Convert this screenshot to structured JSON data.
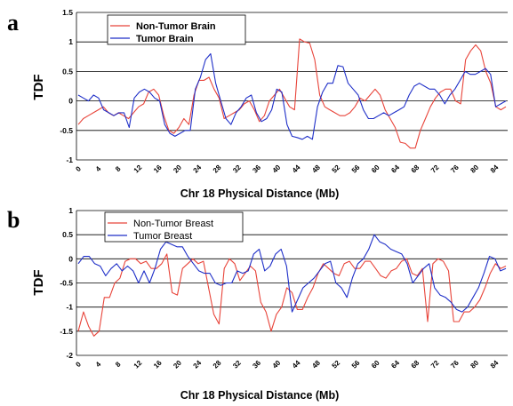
{
  "chart_data": [
    {
      "panel": "a",
      "type": "line",
      "ylabel": "TDF",
      "xlabel": "Chr 18 Physical Distance (Mb)",
      "ylim": [
        -1,
        1.5
      ],
      "yticks": [
        "1.5",
        "1",
        "0.5",
        "0",
        "-0.5",
        "-1"
      ],
      "xticks": [
        "0",
        "4",
        "8",
        "12",
        "16",
        "20",
        "24",
        "28",
        "32",
        "36",
        "40",
        "44",
        "48",
        "52",
        "56",
        "60",
        "64",
        "68",
        "72",
        "76",
        "80",
        "84"
      ],
      "grid": "horizontal",
      "legend_position": "top-left",
      "series": [
        {
          "name": "Non-Tumor Brain",
          "color": "#e8443a",
          "values": [
            -0.4,
            -0.3,
            -0.25,
            -0.2,
            -0.15,
            -0.1,
            -0.2,
            -0.25,
            -0.2,
            -0.25,
            -0.3,
            -0.2,
            -0.1,
            -0.05,
            0.15,
            0.2,
            0.1,
            -0.25,
            -0.5,
            -0.55,
            -0.45,
            -0.3,
            -0.4,
            0.1,
            0.35,
            0.35,
            0.4,
            0.2,
            0.05,
            -0.3,
            -0.25,
            -0.2,
            -0.15,
            -0.05,
            0.0,
            -0.15,
            -0.35,
            -0.25,
            0.0,
            0.1,
            0.2,
            0.05,
            -0.1,
            -0.15,
            1.05,
            1.0,
            0.98,
            0.7,
            0.1,
            -0.1,
            -0.15,
            -0.2,
            -0.25,
            -0.25,
            -0.2,
            -0.1,
            0.05,
            0.0,
            0.1,
            0.2,
            0.1,
            -0.15,
            -0.3,
            -0.45,
            -0.7,
            -0.72,
            -0.8,
            -0.8,
            -0.5,
            -0.3,
            -0.1,
            0.05,
            0.15,
            0.2,
            0.2,
            0.0,
            -0.05,
            0.7,
            0.85,
            0.95,
            0.85,
            0.5,
            0.3,
            -0.1,
            -0.15,
            -0.1
          ]
        },
        {
          "name": "Tumor Brain",
          "color": "#1f2fc8",
          "values": [
            0.1,
            0.05,
            0.0,
            0.1,
            0.05,
            -0.15,
            -0.2,
            -0.25,
            -0.2,
            -0.2,
            -0.45,
            0.05,
            0.15,
            0.2,
            0.15,
            0.05,
            0.0,
            -0.4,
            -0.55,
            -0.6,
            -0.55,
            -0.5,
            -0.5,
            0.2,
            0.4,
            0.7,
            0.8,
            0.3,
            0.0,
            -0.3,
            -0.4,
            -0.2,
            -0.1,
            0.05,
            0.1,
            -0.2,
            -0.35,
            -0.3,
            -0.15,
            0.2,
            0.15,
            -0.4,
            -0.6,
            -0.62,
            -0.65,
            -0.6,
            -0.65,
            -0.1,
            0.15,
            0.3,
            0.3,
            0.6,
            0.58,
            0.3,
            0.2,
            0.1,
            -0.15,
            -0.3,
            -0.3,
            -0.25,
            -0.2,
            -0.25,
            -0.2,
            -0.15,
            -0.1,
            0.1,
            0.25,
            0.3,
            0.25,
            0.2,
            0.2,
            0.1,
            -0.05,
            0.1,
            0.2,
            0.35,
            0.5,
            0.45,
            0.45,
            0.5,
            0.55,
            0.45,
            -0.1,
            -0.05,
            0.0
          ]
        }
      ]
    },
    {
      "panel": "b",
      "type": "line",
      "ylabel": "TDF",
      "xlabel": "Chr 18 Physical Distance (Mb)",
      "ylim": [
        -2,
        1
      ],
      "yticks": [
        "1",
        "0.5",
        "0",
        "-0.5",
        "-1",
        "-1.5",
        "-2"
      ],
      "xticks": [
        "0",
        "4",
        "8",
        "12",
        "16",
        "20",
        "24",
        "28",
        "32",
        "36",
        "40",
        "44",
        "48",
        "52",
        "56",
        "60",
        "64",
        "68",
        "72",
        "76",
        "80",
        "84"
      ],
      "grid": "horizontal",
      "legend_position": "top-left",
      "series": [
        {
          "name": "Non-Tumor Breast",
          "color": "#e8443a",
          "values": [
            -1.5,
            -1.1,
            -1.4,
            -1.6,
            -1.5,
            -0.8,
            -0.8,
            -0.5,
            -0.4,
            -0.05,
            0.0,
            0.0,
            -0.1,
            -0.05,
            -0.2,
            -0.2,
            -0.1,
            0.1,
            -0.7,
            -0.75,
            -0.2,
            -0.1,
            0.0,
            -0.1,
            -0.05,
            -0.6,
            -1.15,
            -1.35,
            -0.2,
            0.0,
            -0.1,
            -0.45,
            -0.3,
            -0.15,
            -0.25,
            -0.9,
            -1.1,
            -1.5,
            -1.15,
            -1.0,
            -0.6,
            -0.7,
            -1.05,
            -1.05,
            -0.8,
            -0.6,
            -0.3,
            -0.1,
            -0.2,
            -0.3,
            -0.35,
            -0.1,
            -0.05,
            -0.2,
            -0.2,
            -0.05,
            -0.05,
            -0.2,
            -0.35,
            -0.4,
            -0.25,
            -0.2,
            -0.05,
            0.0,
            -0.3,
            -0.35,
            -0.2,
            -1.3,
            -0.1,
            0.0,
            -0.05,
            -0.25,
            -1.3,
            -1.3,
            -1.1,
            -1.1,
            -1.0,
            -0.85,
            -0.6,
            -0.3,
            -0.1,
            -0.2,
            -0.15
          ]
        },
        {
          "name": "Tumor Breast",
          "color": "#1f2fc8",
          "values": [
            -0.1,
            0.05,
            0.05,
            -0.1,
            -0.15,
            -0.35,
            -0.2,
            -0.1,
            -0.25,
            -0.15,
            -0.25,
            -0.5,
            -0.25,
            -0.5,
            -0.2,
            0.2,
            0.35,
            0.3,
            0.25,
            0.25,
            0.05,
            -0.1,
            -0.25,
            -0.3,
            -0.3,
            -0.5,
            -0.55,
            -0.5,
            -0.5,
            -0.25,
            -0.3,
            -0.25,
            0.1,
            0.2,
            -0.25,
            -0.15,
            0.1,
            0.2,
            -0.15,
            -1.1,
            -0.85,
            -0.6,
            -0.5,
            -0.4,
            -0.25,
            -0.1,
            -0.05,
            -0.5,
            -0.6,
            -0.8,
            -0.4,
            -0.1,
            0.0,
            0.2,
            0.5,
            0.35,
            0.3,
            0.2,
            0.15,
            0.1,
            -0.1,
            -0.5,
            -0.35,
            -0.2,
            -0.1,
            -0.6,
            -0.75,
            -0.8,
            -0.9,
            -1.05,
            -1.1,
            -1.0,
            -0.8,
            -0.6,
            -0.3,
            0.05,
            0.0,
            -0.25,
            -0.2
          ]
        }
      ]
    }
  ]
}
